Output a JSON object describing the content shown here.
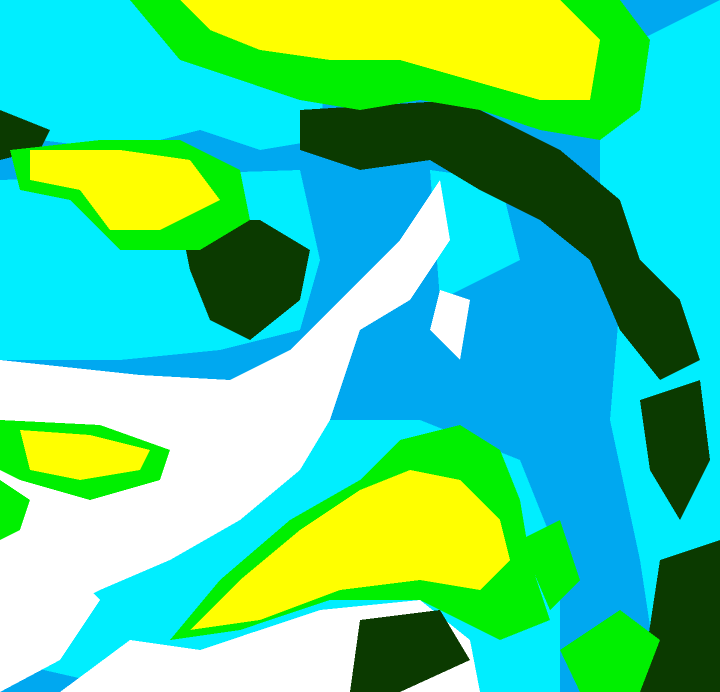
{
  "palette": {
    "white": "#ffffff",
    "cyan": "#00eeff",
    "blue": "#00a8f0",
    "green": "#00f000",
    "yellow": "#ffff00",
    "dark_green": "#0b3a00"
  }
}
